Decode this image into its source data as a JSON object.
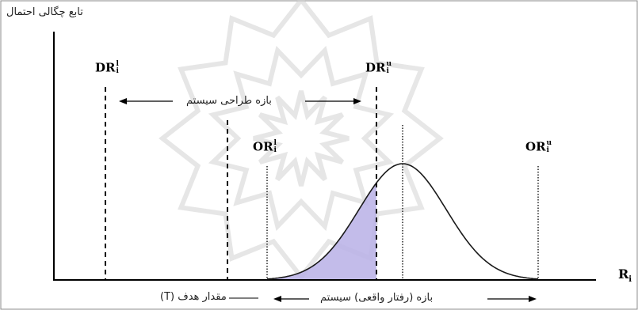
{
  "colors": {
    "line": "#000000",
    "curve": "#1a1a1a",
    "shade": "#b9b0e6",
    "watermark": "#d3d3d3"
  },
  "icons": {
    "background": "star-pattern-watermark"
  },
  "labels": {
    "y_axis": "تابع چگالی احتمال",
    "x_axis_base": "R",
    "x_axis_sub": "i",
    "design_range": "بازه طراحی سیستم",
    "actual_range": "بازه (رفتار واقعی) سیستم",
    "target_value": "مقدار هدف (T)",
    "dr_lower_base": "DR",
    "dr_lower_sup": "l",
    "dr_lower_sub": "i",
    "dr_upper_base": "DR",
    "dr_upper_sup": "u",
    "dr_upper_sub": "i",
    "or_lower_base": "OR",
    "or_lower_sup": "l",
    "or_lower_sub": "i",
    "or_upper_base": "OR",
    "or_upper_sup": "u",
    "or_upper_sub": "i"
  },
  "limits": {
    "design_lower_x": 133,
    "design_upper_x": 475,
    "operating_lower_x": 337,
    "operating_upper_x": 679,
    "target_x": 287,
    "mean_x": 508
  }
}
